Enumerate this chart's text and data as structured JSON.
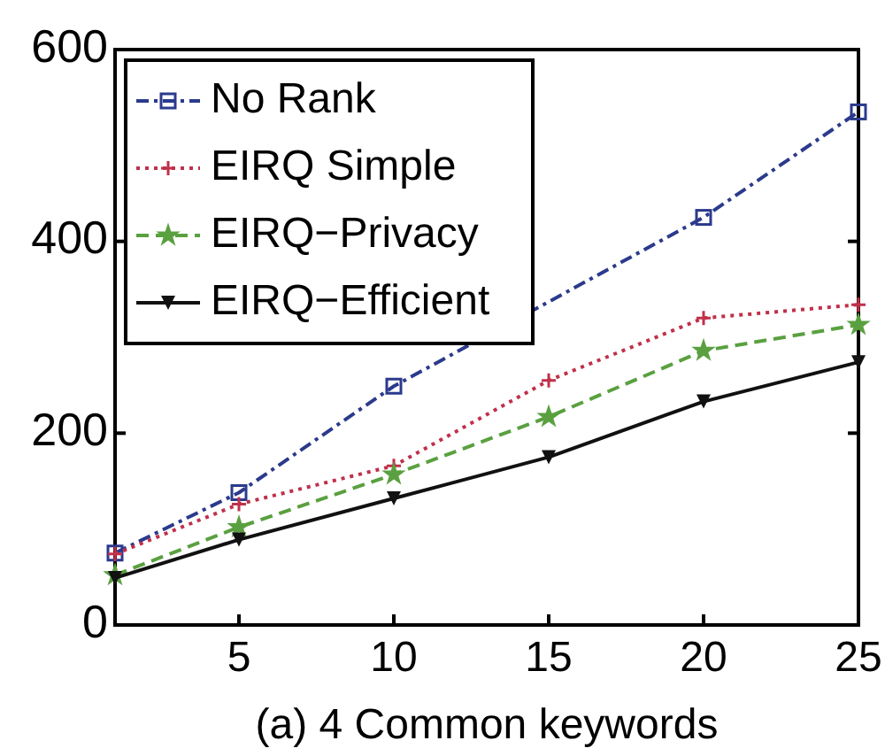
{
  "chart_data": {
    "type": "line",
    "xlabel": "(a) 4 Common keywords",
    "x": [
      1,
      5,
      10,
      15,
      20,
      25
    ],
    "xlim": [
      1,
      25
    ],
    "xticks": [
      5,
      10,
      15,
      20,
      25
    ],
    "ylim": [
      0,
      600
    ],
    "yticks": [
      0,
      200,
      400,
      600
    ],
    "grid": false,
    "legend": "top left",
    "series": [
      {
        "name": "No Rank",
        "color": "#2b3a8c",
        "values": [
          75,
          138,
          249,
          null,
          425,
          535
        ],
        "marker": "square",
        "line_style": "dashdot"
      },
      {
        "name": "EIRQ  Simple",
        "color": "#c0304a",
        "values": [
          74,
          126,
          166,
          255,
          320,
          334
        ],
        "marker": "cross",
        "line_style": "dotted"
      },
      {
        "name": "EIRQ−Privacy",
        "color": "#5aa040",
        "values": [
          52,
          102,
          157,
          217,
          286,
          313
        ],
        "marker": "star",
        "line_style": "dashed"
      },
      {
        "name": "EIRQ−Efficient",
        "color": "#111111",
        "values": [
          49,
          89,
          132,
          175,
          233,
          274
        ],
        "marker": "triangle",
        "line_style": "solid"
      }
    ]
  }
}
